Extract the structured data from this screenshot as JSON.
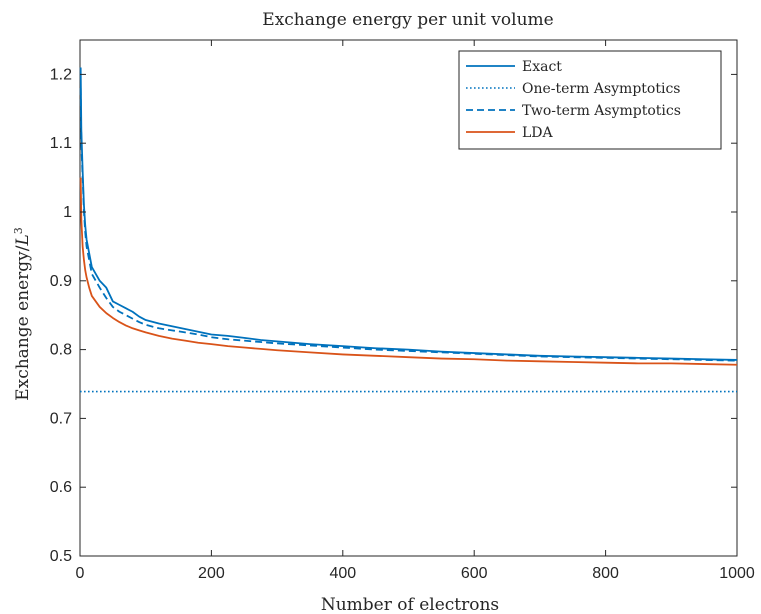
{
  "chart_data": {
    "type": "line",
    "title": "Exchange energy per unit volume",
    "xlabel": "Number of electrons",
    "ylabel": {
      "prefix": "Exchange energy/",
      "var": "L",
      "exponent": "3"
    },
    "xlim": [
      0,
      1000
    ],
    "ylim": [
      0.5,
      1.25
    ],
    "xticks": [
      0,
      200,
      400,
      600,
      800,
      1000
    ],
    "yticks": [
      0.5,
      0.6,
      0.7,
      0.8,
      0.9,
      1.0
    ],
    "yticks_extra": [
      1.1,
      1.2
    ],
    "xtick_labels": [
      "0",
      "200",
      "400",
      "600",
      "800",
      "1000"
    ],
    "ytick_labels": [
      "0.5",
      "0.6",
      "0.7",
      "0.8",
      "0.9",
      "1",
      "1.1",
      "1.2"
    ],
    "grid": false,
    "legend_position": "top-right",
    "colors": {
      "blue": "#0072BD",
      "orange": "#D95319",
      "axis": "#262626"
    },
    "series": [
      {
        "name": "Exact",
        "style": "solid",
        "color": "#0072BD",
        "x": [
          1,
          2,
          4,
          6,
          8,
          10,
          14,
          18,
          24,
          30,
          40,
          50,
          60,
          70,
          80,
          90,
          100,
          120,
          140,
          160,
          180,
          200,
          225,
          250,
          275,
          300,
          350,
          400,
          450,
          500,
          550,
          600,
          650,
          700,
          750,
          800,
          850,
          900,
          950,
          1000
        ],
        "y": [
          1.21,
          1.12,
          1.06,
          1.01,
          0.98,
          0.96,
          0.94,
          0.92,
          0.91,
          0.9,
          0.89,
          0.87,
          0.865,
          0.86,
          0.855,
          0.848,
          0.843,
          0.838,
          0.834,
          0.83,
          0.826,
          0.822,
          0.82,
          0.817,
          0.814,
          0.812,
          0.808,
          0.805,
          0.802,
          0.8,
          0.797,
          0.795,
          0.793,
          0.791,
          0.79,
          0.789,
          0.788,
          0.787,
          0.786,
          0.785
        ]
      },
      {
        "name": "One-term Asymptotics",
        "style": "dotted",
        "color": "#0072BD",
        "x": [
          0,
          1000
        ],
        "y": [
          0.739,
          0.739
        ]
      },
      {
        "name": "Two-term Asymptotics",
        "style": "dashed",
        "color": "#0072BD",
        "x": [
          1,
          2,
          4,
          6,
          8,
          10,
          14,
          18,
          24,
          30,
          40,
          50,
          60,
          70,
          80,
          90,
          100,
          120,
          140,
          160,
          180,
          200,
          225,
          250,
          275,
          300,
          350,
          400,
          450,
          500,
          550,
          600,
          650,
          700,
          750,
          800,
          850,
          900,
          950,
          1000
        ],
        "y": [
          1.18,
          1.1,
          1.05,
          1.0,
          0.97,
          0.95,
          0.93,
          0.91,
          0.9,
          0.89,
          0.875,
          0.862,
          0.855,
          0.85,
          0.845,
          0.84,
          0.836,
          0.831,
          0.828,
          0.825,
          0.822,
          0.818,
          0.815,
          0.813,
          0.811,
          0.809,
          0.806,
          0.803,
          0.8,
          0.798,
          0.796,
          0.794,
          0.792,
          0.79,
          0.789,
          0.788,
          0.787,
          0.786,
          0.785,
          0.784
        ]
      },
      {
        "name": "LDA",
        "style": "solid",
        "color": "#D95319",
        "x": [
          1,
          2,
          4,
          6,
          8,
          10,
          14,
          18,
          24,
          30,
          40,
          50,
          60,
          70,
          80,
          90,
          100,
          120,
          140,
          160,
          180,
          200,
          225,
          250,
          275,
          300,
          350,
          400,
          450,
          500,
          550,
          600,
          650,
          700,
          750,
          800,
          850,
          900,
          950,
          1000
        ],
        "y": [
          1.05,
          0.99,
          0.95,
          0.93,
          0.915,
          0.905,
          0.89,
          0.878,
          0.87,
          0.862,
          0.853,
          0.846,
          0.84,
          0.835,
          0.831,
          0.828,
          0.825,
          0.82,
          0.816,
          0.813,
          0.81,
          0.808,
          0.805,
          0.803,
          0.801,
          0.799,
          0.796,
          0.793,
          0.791,
          0.789,
          0.787,
          0.786,
          0.784,
          0.783,
          0.782,
          0.781,
          0.78,
          0.78,
          0.779,
          0.778
        ]
      }
    ]
  }
}
